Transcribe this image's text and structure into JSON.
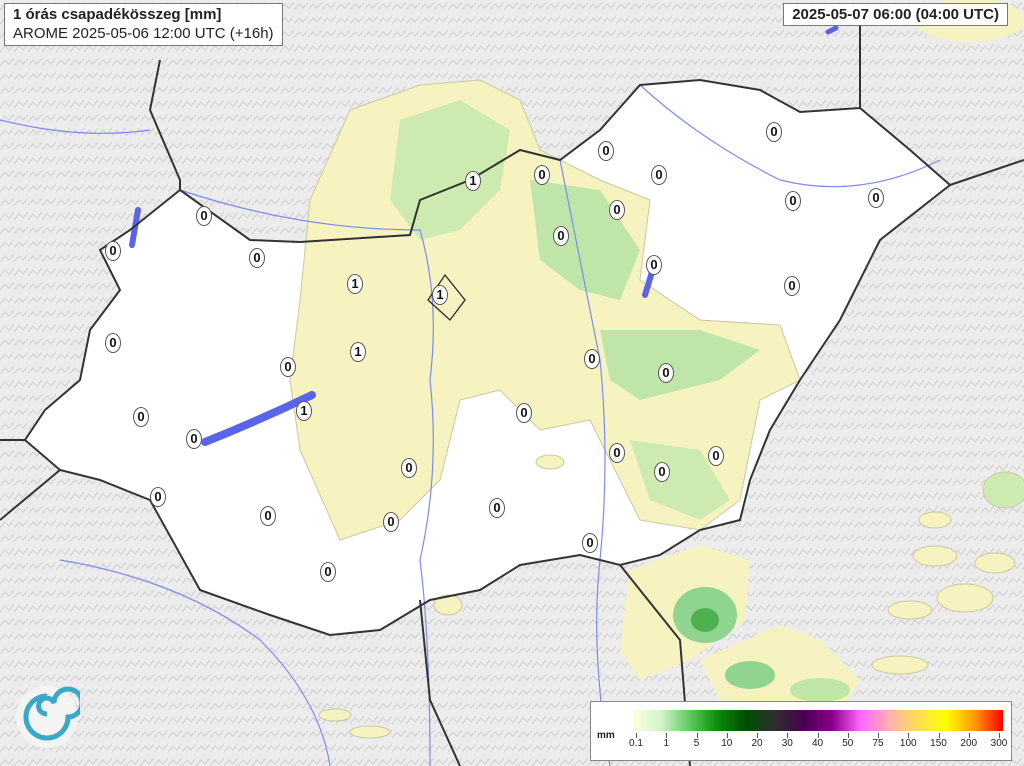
{
  "header": {
    "title": "1 órás csapadékösszeg [mm]",
    "subtitle": "AROME 2025-05-06 12:00 UTC (+16h)",
    "valid_time": "2025-05-07 06:00 (04:00 UTC)"
  },
  "map": {
    "station_values": [
      "0",
      "0",
      "0",
      "0",
      "1",
      "0",
      "0",
      "0",
      "0",
      "0",
      "0",
      "0",
      "0",
      "0",
      "1",
      "1",
      "0",
      "1",
      "0",
      "0",
      "0",
      "1",
      "0",
      "0",
      "0",
      "0",
      "0",
      "0",
      "0",
      "0",
      "0",
      "0",
      "0",
      "0",
      "0"
    ],
    "colors": {
      "land_in_domain": "#ffffff",
      "terrain": "#e6e6e6",
      "border": "#333333",
      "rivers": "#7b8cf0",
      "lakes": "#5a64e8",
      "precip_light": "#f9f6c4",
      "precip_green": "#bfe6a8",
      "precip_dark_green": "#6cc46c"
    }
  },
  "legend": {
    "unit": "mm",
    "ticks": [
      "0.1",
      "1",
      "5",
      "10",
      "20",
      "30",
      "40",
      "50",
      "75",
      "100",
      "150",
      "200",
      "300"
    ],
    "gradient": [
      "#fffde0",
      "#cff5c8",
      "#5ec85e",
      "#0a8a0a",
      "#004d00",
      "#2e2e2e",
      "#4a0050",
      "#8a008a",
      "#ff66ff",
      "#ffb0b0",
      "#ffdd55",
      "#ffff00",
      "#ff9900",
      "#ff0000"
    ]
  }
}
